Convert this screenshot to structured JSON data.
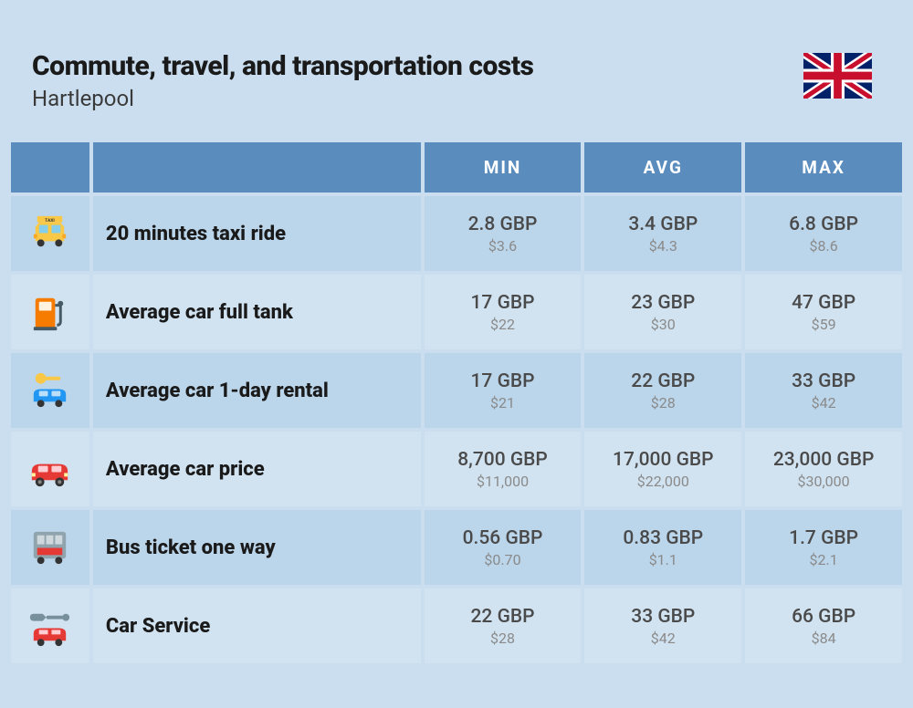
{
  "header": {
    "title": "Commute, travel, and transportation costs",
    "subtitle": "Hartlepool"
  },
  "columns": [
    "MIN",
    "AVG",
    "MAX"
  ],
  "rows": [
    {
      "icon": "taxi",
      "label": "20 minutes taxi ride",
      "min": {
        "primary": "2.8 GBP",
        "secondary": "$3.6"
      },
      "avg": {
        "primary": "3.4 GBP",
        "secondary": "$4.3"
      },
      "max": {
        "primary": "6.8 GBP",
        "secondary": "$8.6"
      }
    },
    {
      "icon": "fuel",
      "label": "Average car full tank",
      "min": {
        "primary": "17 GBP",
        "secondary": "$22"
      },
      "avg": {
        "primary": "23 GBP",
        "secondary": "$30"
      },
      "max": {
        "primary": "47 GBP",
        "secondary": "$59"
      }
    },
    {
      "icon": "rental",
      "label": "Average car 1-day rental",
      "min": {
        "primary": "17 GBP",
        "secondary": "$21"
      },
      "avg": {
        "primary": "22 GBP",
        "secondary": "$28"
      },
      "max": {
        "primary": "33 GBP",
        "secondary": "$42"
      }
    },
    {
      "icon": "car",
      "label": "Average car price",
      "min": {
        "primary": "8,700 GBP",
        "secondary": "$11,000"
      },
      "avg": {
        "primary": "17,000 GBP",
        "secondary": "$22,000"
      },
      "max": {
        "primary": "23,000 GBP",
        "secondary": "$30,000"
      }
    },
    {
      "icon": "bus",
      "label": "Bus ticket one way",
      "min": {
        "primary": "0.56 GBP",
        "secondary": "$0.70"
      },
      "avg": {
        "primary": "0.83 GBP",
        "secondary": "$1.1"
      },
      "max": {
        "primary": "1.7 GBP",
        "secondary": "$2.1"
      }
    },
    {
      "icon": "service",
      "label": "Car Service",
      "min": {
        "primary": "22 GBP",
        "secondary": "$28"
      },
      "avg": {
        "primary": "33 GBP",
        "secondary": "$42"
      },
      "max": {
        "primary": "66 GBP",
        "secondary": "$84"
      }
    }
  ],
  "colors": {
    "page_bg": "#cadef0",
    "header_bg": "#5a8cbe",
    "header_text": "#ffffff",
    "row_even": "#bbd5ea",
    "row_odd": "#d1e3f1",
    "title": "#1a1a1a",
    "primary_text": "#4a4a4a",
    "secondary_text": "#8a8a8a"
  },
  "typography": {
    "title_size": 30,
    "subtitle_size": 24,
    "header_size": 19,
    "label_size": 22,
    "primary_size": 21,
    "secondary_size": 16
  }
}
